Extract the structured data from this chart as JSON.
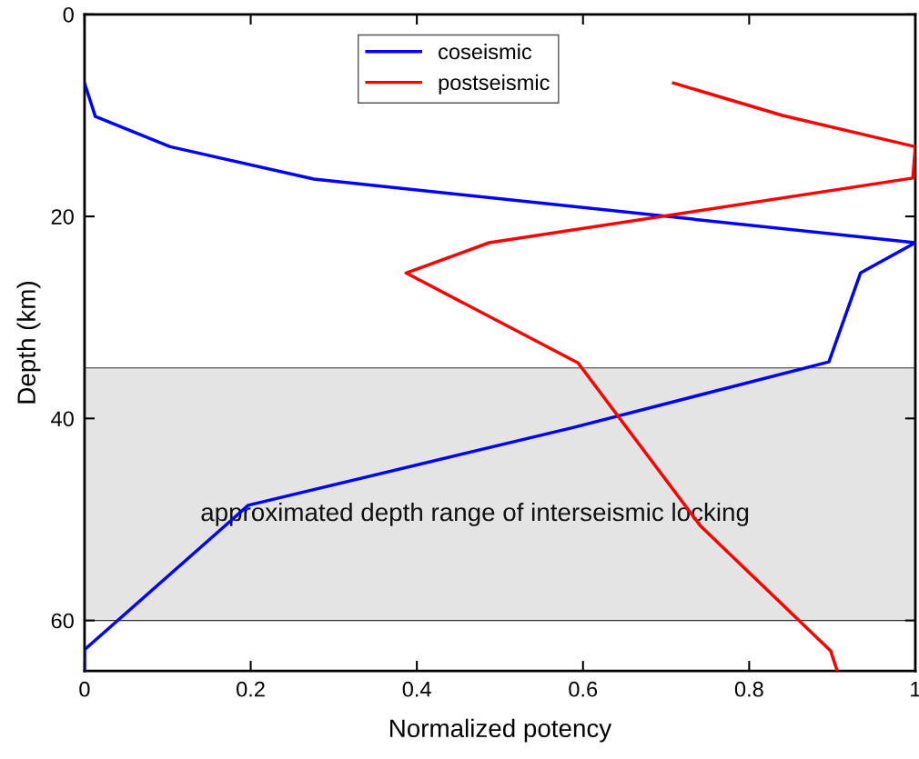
{
  "chart_data": {
    "type": "line",
    "xlabel": "Normalized potency",
    "ylabel": "Depth (km)",
    "xlim": [
      0,
      1
    ],
    "ylim": [
      65,
      0
    ],
    "xticks": [
      0,
      0.2,
      0.4,
      0.6,
      0.8,
      1
    ],
    "yticks": [
      0,
      20,
      40,
      60
    ],
    "series": [
      {
        "name": "coseismic",
        "color": "#0000ff",
        "x": [
          0,
          0.013,
          0.103,
          0.276,
          1,
          0.934,
          0.896,
          0.588,
          0.197,
          0,
          0
        ],
        "values": [
          6.8,
          10.1,
          13.1,
          16.3,
          22.6,
          25.6,
          34.4,
          40.9,
          48.6,
          62.9,
          65
        ]
      },
      {
        "name": "postseismic",
        "color": "#ff0000",
        "x": [
          0.709,
          0.84,
          1,
          0.997,
          0.487,
          0.387,
          0.594,
          0.741,
          0.898,
          0.906
        ],
        "values": [
          6.8,
          10,
          13.1,
          16.2,
          22.6,
          25.6,
          34.5,
          50.6,
          63,
          65
        ]
      }
    ],
    "bands": [
      {
        "axis": "y",
        "from": 35,
        "to": 60,
        "label": "approximated depth range of interseismic locking",
        "color": "#e4e4e4"
      }
    ],
    "legend": "top",
    "grid": false
  }
}
